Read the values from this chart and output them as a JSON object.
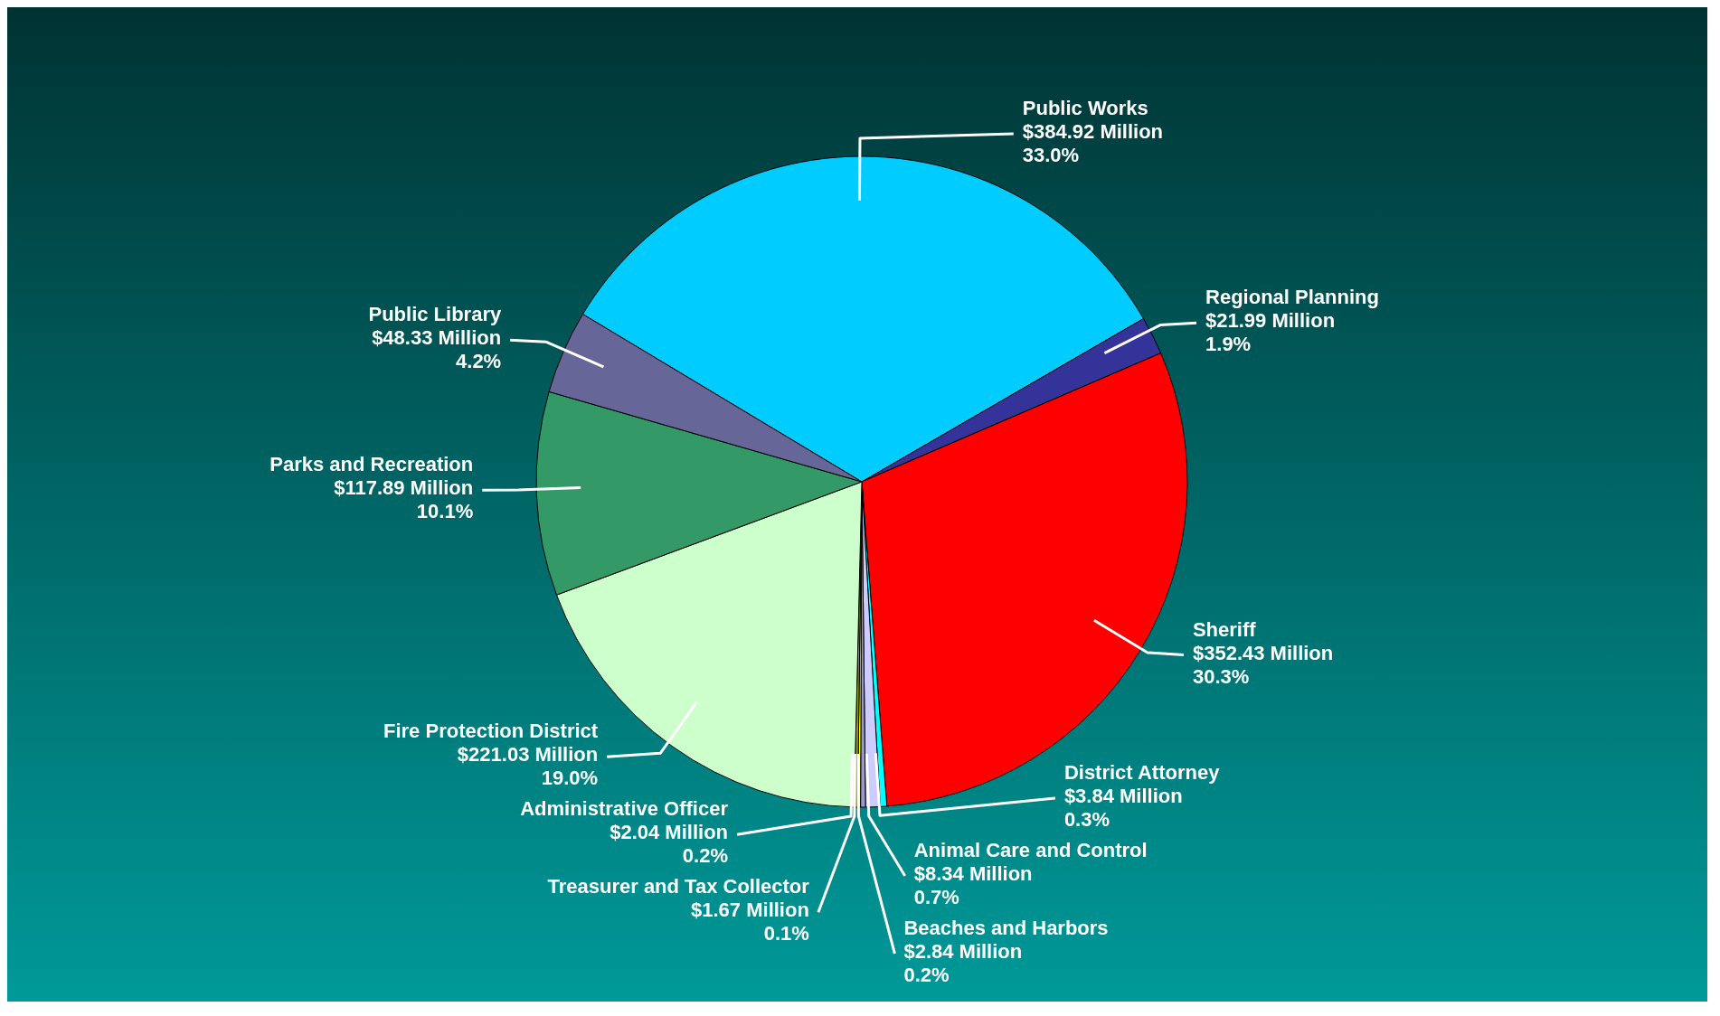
{
  "chart_data": {
    "type": "pie",
    "categories": [
      "Public Works",
      "Regional Planning",
      "Sheriff",
      "District Attorney",
      "Animal Care and Control",
      "Beaches and Harbors",
      "Treasurer and Tax Collector",
      "Administrative Officer",
      "Fire Protection District",
      "Parks and Recreation",
      "Public Library"
    ],
    "values": [
      384.92,
      21.99,
      352.43,
      3.84,
      8.34,
      2.84,
      1.67,
      2.04,
      221.03,
      117.89,
      48.33
    ],
    "value_labels": [
      "$384.92 Million\n33.0%",
      "$21.99 Million\n1.9%",
      "$352.43 Million\n30.3%",
      "$3.84 Million\n0.3%",
      "$8.34 Million\n0.7%",
      "$2.84 Million\n0.2%",
      "$1.67 Million\n0.1%",
      "$2.04 Million\n0.2%",
      "$221.03 Million\n19.0%",
      "$117.89 Million\n10.1%",
      "$48.33 Million\n4.2%"
    ],
    "colors": [
      "#00ccff",
      "#333399",
      "#ff0000",
      "#00ffff",
      "#ccccff",
      "#9999cc",
      "#ffff00",
      "#999933",
      "#ccffcc",
      "#339966",
      "#666699"
    ]
  }
}
